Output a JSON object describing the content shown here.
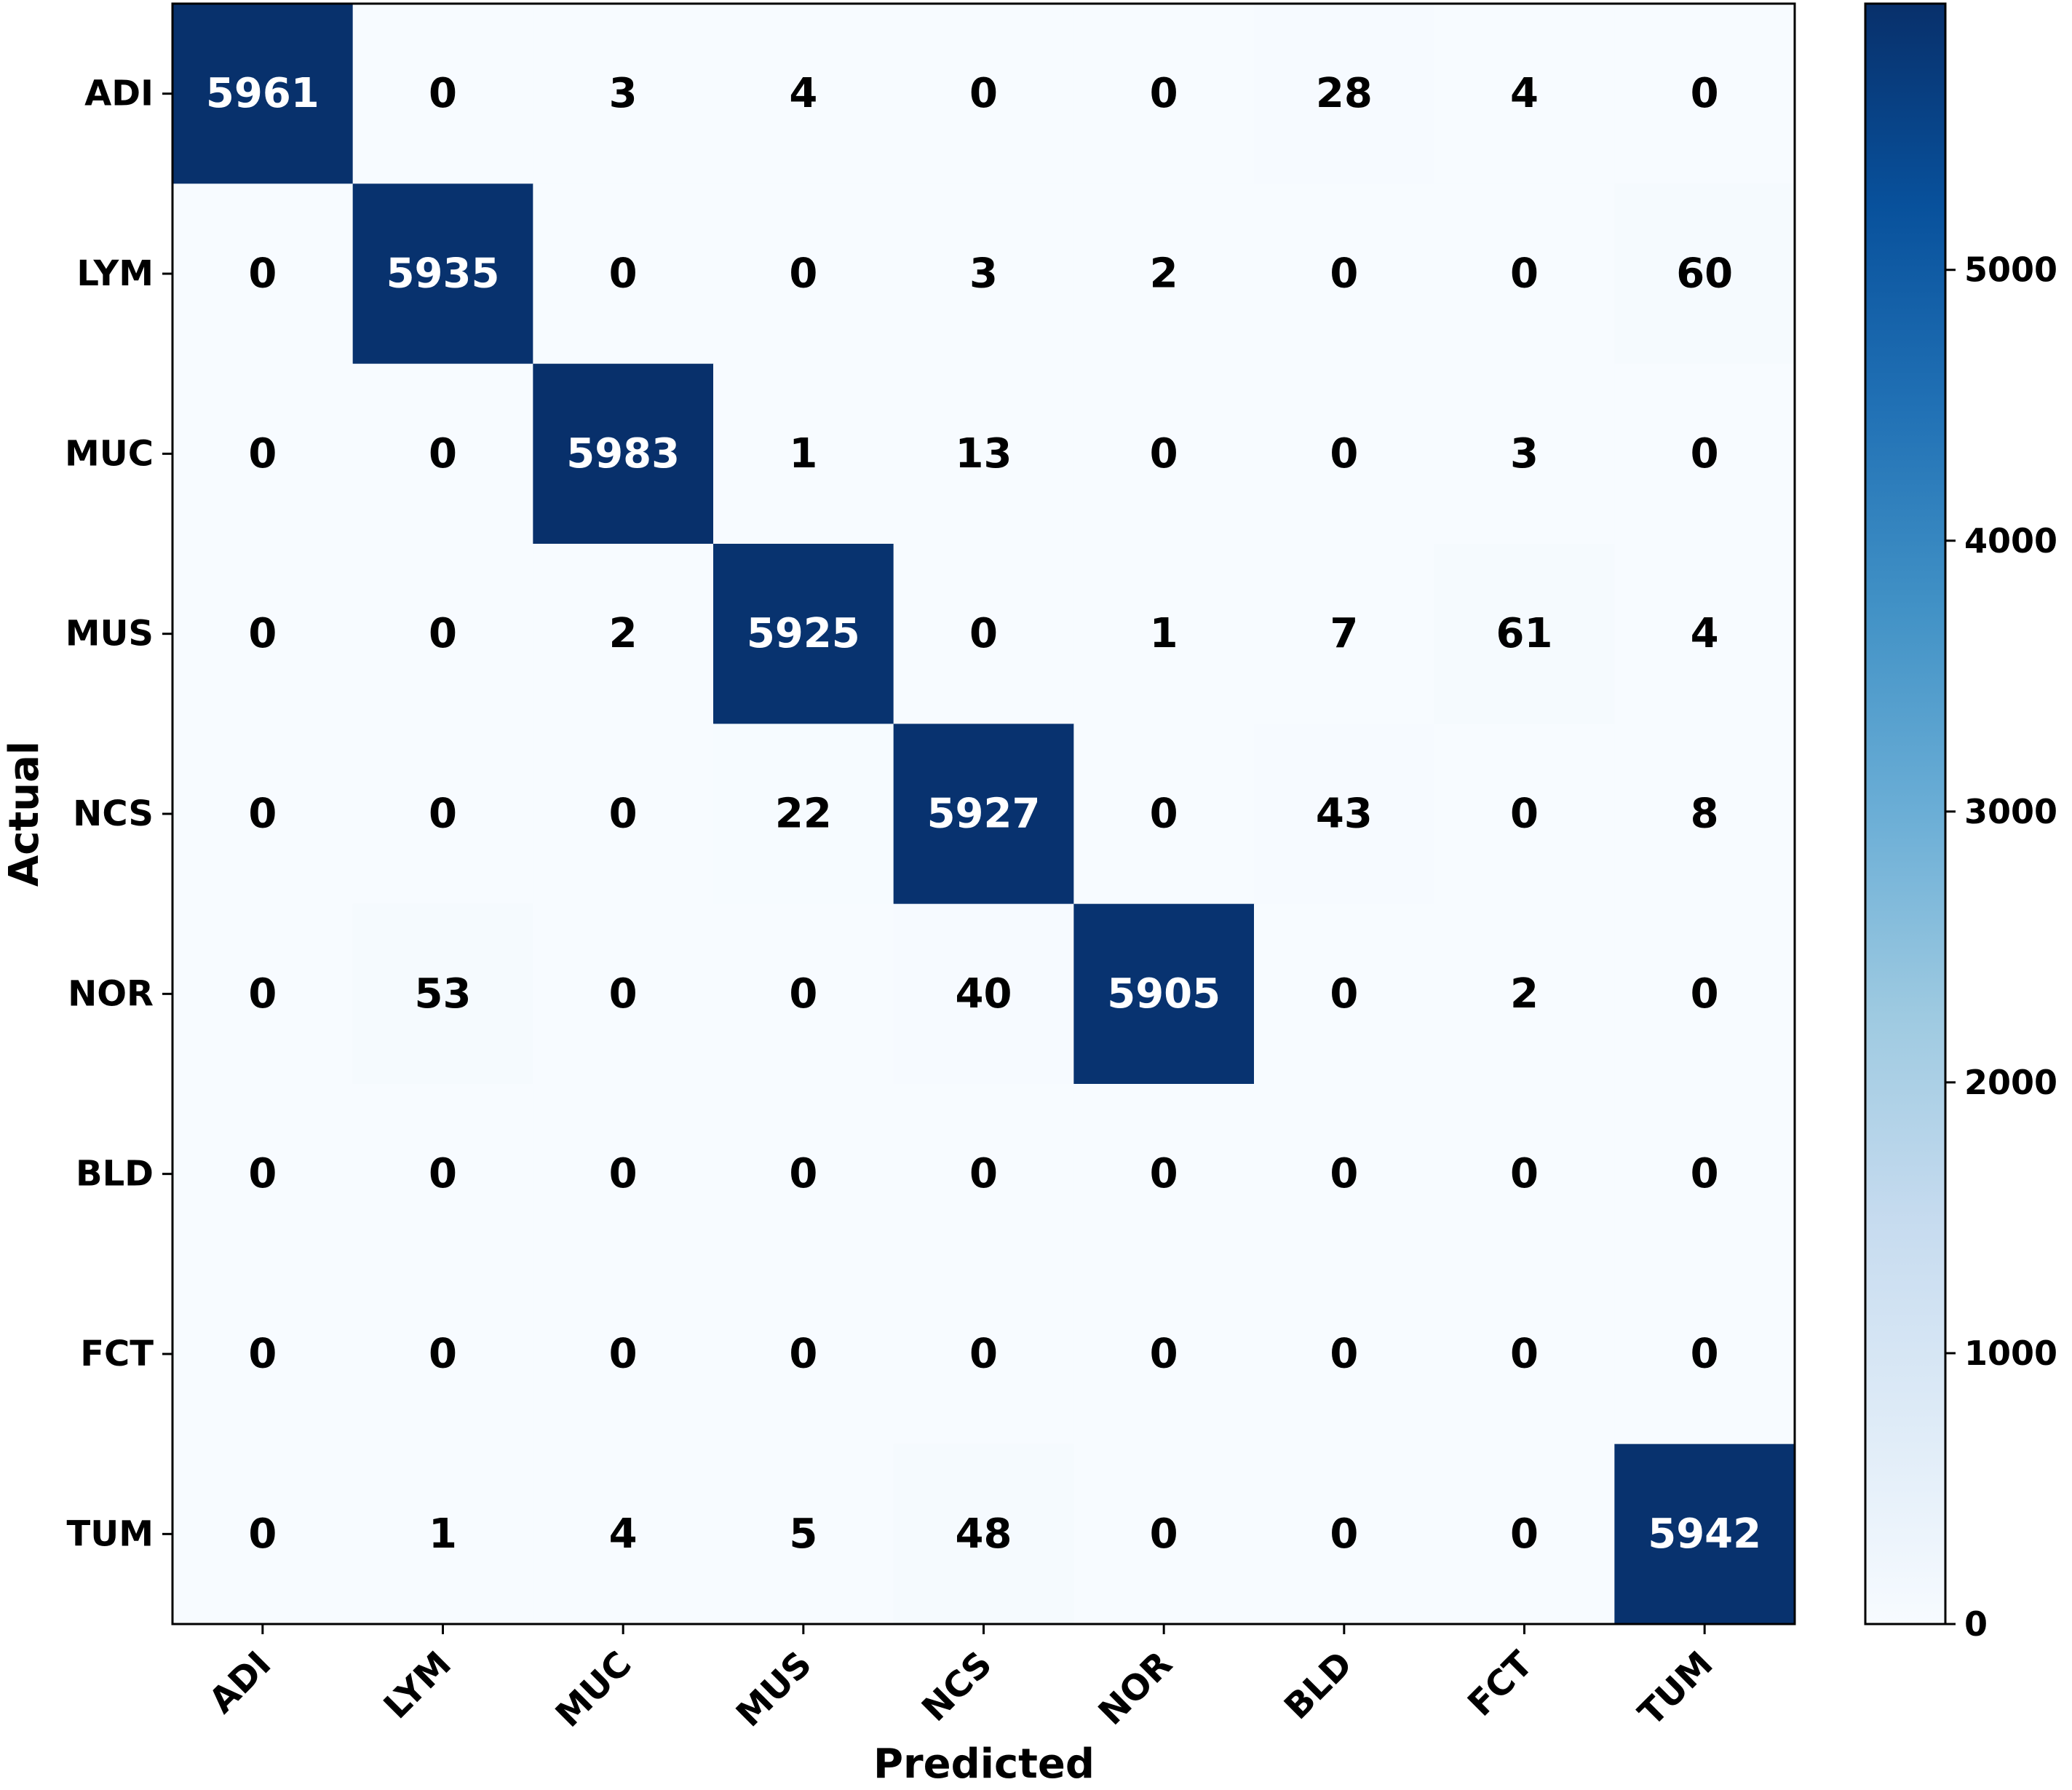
{
  "chart_data": {
    "type": "heatmap",
    "xlabel": "Predicted",
    "ylabel": "Actual",
    "x_categories": [
      "ADI",
      "LYM",
      "MUC",
      "MUS",
      "NCS",
      "NOR",
      "BLD",
      "FCT",
      "TUM"
    ],
    "y_categories": [
      "ADI",
      "LYM",
      "MUC",
      "MUS",
      "NCS",
      "NOR",
      "BLD",
      "FCT",
      "TUM"
    ],
    "values": [
      [
        5961,
        0,
        3,
        4,
        0,
        0,
        28,
        4,
        0
      ],
      [
        0,
        5935,
        0,
        0,
        3,
        2,
        0,
        0,
        60
      ],
      [
        0,
        0,
        5983,
        1,
        13,
        0,
        0,
        3,
        0
      ],
      [
        0,
        0,
        2,
        5925,
        0,
        1,
        7,
        61,
        4
      ],
      [
        0,
        0,
        0,
        22,
        5927,
        0,
        43,
        0,
        8
      ],
      [
        0,
        53,
        0,
        0,
        40,
        5905,
        0,
        2,
        0
      ],
      [
        0,
        0,
        0,
        0,
        0,
        0,
        0,
        0,
        0
      ],
      [
        0,
        0,
        0,
        0,
        0,
        0,
        0,
        0,
        0
      ],
      [
        0,
        1,
        4,
        5,
        48,
        0,
        0,
        0,
        5942
      ]
    ],
    "colormap": "Blues",
    "colorbar": {
      "ticks": [
        0,
        1000,
        2000,
        3000,
        4000,
        5000
      ],
      "tick_labels": [
        "0",
        "1000",
        "2000",
        "3000",
        "4000",
        "5000"
      ],
      "range": [
        0,
        5983
      ]
    },
    "grid": false,
    "text_color_light": "#ffffff",
    "text_color_dark": "#000000"
  }
}
